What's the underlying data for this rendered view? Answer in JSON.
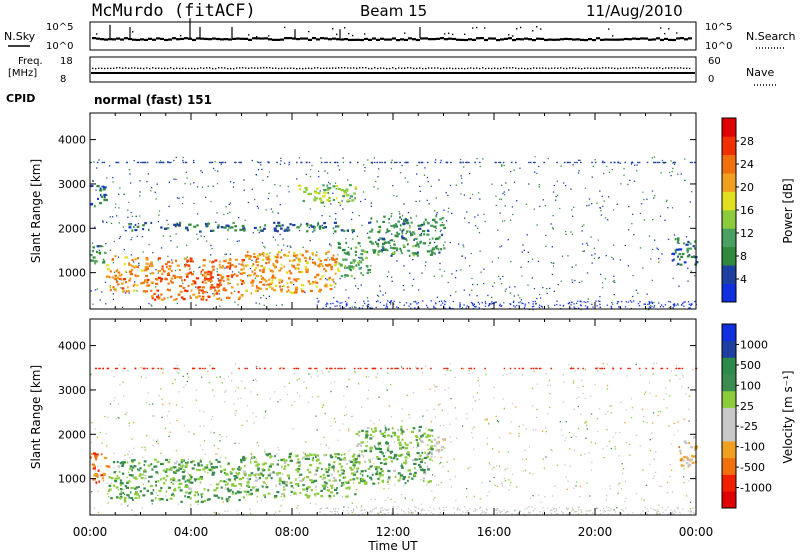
{
  "header": {
    "station": "McMurdo (fitACF)",
    "beam": "Beam 15",
    "date": "11/Aug/2010"
  },
  "status": {
    "nsky_label": "N.Sky",
    "nsky_ticks": [
      "10^5",
      "10^0"
    ],
    "nsearch_label": "N.Search",
    "nsearch_ticks": [
      "10^5",
      "10^0"
    ],
    "freq_label": "Freq.",
    "freq_unit": "[MHz]",
    "freq_ticks": [
      "18",
      "8"
    ],
    "nave_label": "Nave",
    "nave_ticks": [
      "60",
      "0"
    ],
    "cpid_label": "CPID",
    "cpid_value": "normal (fast) 151"
  },
  "colors": {
    "power": [
      "#1030e0",
      "#1c3fa0",
      "#2f8a3c",
      "#4aa060",
      "#8ccc3c",
      "#e0e020",
      "#f0a020",
      "#f07010",
      "#f03000",
      "#e00000"
    ],
    "velocity": [
      "#e00000",
      "#f02000",
      "#f07010",
      "#f0a020",
      "#c8c8c8",
      "#c8c8c8",
      "#8ccc3c",
      "#3a8c50",
      "#2d8a4a",
      "#1c3fa0",
      "#1030e0"
    ]
  },
  "chart_data": [
    {
      "type": "heatmap",
      "panel": "power",
      "ylabel": "Slant Range [km]",
      "yticks": [
        "4000",
        "3000",
        "2000",
        "1000"
      ],
      "ylim": [
        180,
        4600
      ],
      "xlim": [
        0,
        24
      ],
      "colorbar_label": "Power [dB]",
      "colorbar_ticks": [
        "28",
        "24",
        "20",
        "16",
        "12",
        "8",
        "4"
      ],
      "colorbar_range": [
        0,
        32
      ],
      "regions": [
        {
          "t0": 0.0,
          "t1": 0.6,
          "r0": 1200,
          "r1": 1650,
          "value": 10
        },
        {
          "t0": 0.6,
          "t1": 2.2,
          "r0": 600,
          "r1": 1400,
          "value": 22
        },
        {
          "t0": 2.2,
          "t1": 6.0,
          "r0": 400,
          "r1": 1350,
          "value": 24
        },
        {
          "t0": 6.0,
          "t1": 9.8,
          "r0": 550,
          "r1": 1500,
          "value": 21
        },
        {
          "t0": 9.8,
          "t1": 11.0,
          "r0": 900,
          "r1": 1700,
          "value": 11
        },
        {
          "t0": 11.0,
          "t1": 14.0,
          "r0": 1400,
          "r1": 2300,
          "value": 9
        },
        {
          "t0": 0.0,
          "t1": 0.6,
          "r0": 2500,
          "r1": 3000,
          "value": 6
        },
        {
          "t0": 1.5,
          "t1": 10.5,
          "r0": 1950,
          "r1": 2150,
          "value": 7
        },
        {
          "t0": 8.2,
          "t1": 10.5,
          "r0": 2600,
          "r1": 3000,
          "value": 14
        },
        {
          "t0": 23.0,
          "t1": 24.0,
          "r0": 1200,
          "r1": 1800,
          "value": 7
        }
      ]
    },
    {
      "type": "heatmap",
      "panel": "velocity",
      "ylabel": "Slant Range [km]",
      "yticks": [
        "4000",
        "3000",
        "2000",
        "1000"
      ],
      "ylim": [
        180,
        4600
      ],
      "xlim": [
        0,
        24
      ],
      "xlabel": "Time UT",
      "xticks": [
        "00:00",
        "04:00",
        "08:00",
        "12:00",
        "16:00",
        "20:00",
        "00:00"
      ],
      "colorbar_label": "Velocity [m s⁻¹]",
      "colorbar_ticks": [
        "1000",
        "500",
        "100",
        "25",
        "-25",
        "-100",
        "-500",
        "-1000"
      ],
      "colorbar_range": [
        -1200,
        1200
      ],
      "regions": [
        {
          "t0": 0.0,
          "t1": 0.7,
          "r0": 900,
          "r1": 1600,
          "value": -600
        },
        {
          "t0": 0.7,
          "t1": 6.0,
          "r0": 500,
          "r1": 1450,
          "value": 350
        },
        {
          "t0": 6.0,
          "t1": 10.5,
          "r0": 600,
          "r1": 1600,
          "value": 300
        },
        {
          "t0": 10.5,
          "t1": 13.5,
          "r0": 900,
          "r1": 2200,
          "value": 300
        },
        {
          "t0": 13.5,
          "t1": 14.0,
          "r0": 1600,
          "r1": 2000,
          "value": -300
        },
        {
          "t0": 23.3,
          "t1": 24.0,
          "r0": 1300,
          "r1": 2000,
          "value": -400
        }
      ]
    }
  ]
}
